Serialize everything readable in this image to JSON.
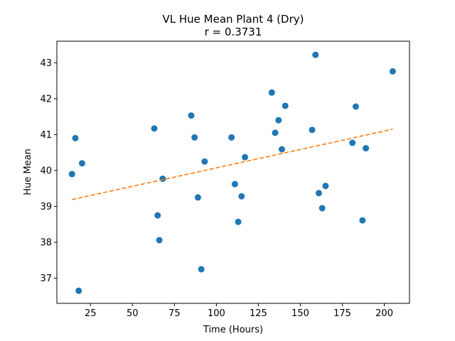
{
  "chart_data": {
    "type": "scatter",
    "title": "VL Hue Mean Plant 4 (Dry)",
    "subtitle": "r = 0.3731",
    "xlabel": "Time (Hours)",
    "ylabel": "Hue Mean",
    "xlim": [
      5,
      215
    ],
    "ylim": [
      36.3,
      43.6
    ],
    "xticks": [
      25,
      50,
      75,
      100,
      125,
      150,
      175,
      200
    ],
    "yticks": [
      37,
      38,
      39,
      40,
      41,
      42,
      43
    ],
    "grid": false,
    "colors": {
      "points": "#1f77b4",
      "trend": "#ff7f0e"
    },
    "series": [
      {
        "kind": "points",
        "x": [
          14,
          16,
          18,
          20,
          63,
          65,
          66,
          68,
          85,
          87,
          89,
          91,
          93,
          109,
          111,
          113,
          115,
          117,
          133,
          135,
          137,
          139,
          141,
          157,
          159,
          161,
          163,
          165,
          181,
          183,
          187,
          189,
          205
        ],
        "y": [
          39.9,
          40.9,
          36.65,
          40.2,
          41.17,
          38.75,
          38.06,
          39.77,
          41.53,
          40.92,
          39.25,
          37.25,
          40.25,
          40.92,
          39.62,
          38.57,
          39.28,
          40.37,
          42.17,
          41.05,
          41.4,
          40.59,
          41.8,
          41.13,
          43.22,
          39.37,
          38.95,
          39.57,
          40.77,
          41.78,
          38.61,
          40.62,
          42.76
        ]
      },
      {
        "kind": "trendline",
        "x": [
          14,
          205
        ],
        "y": [
          39.19,
          41.15
        ]
      }
    ]
  }
}
